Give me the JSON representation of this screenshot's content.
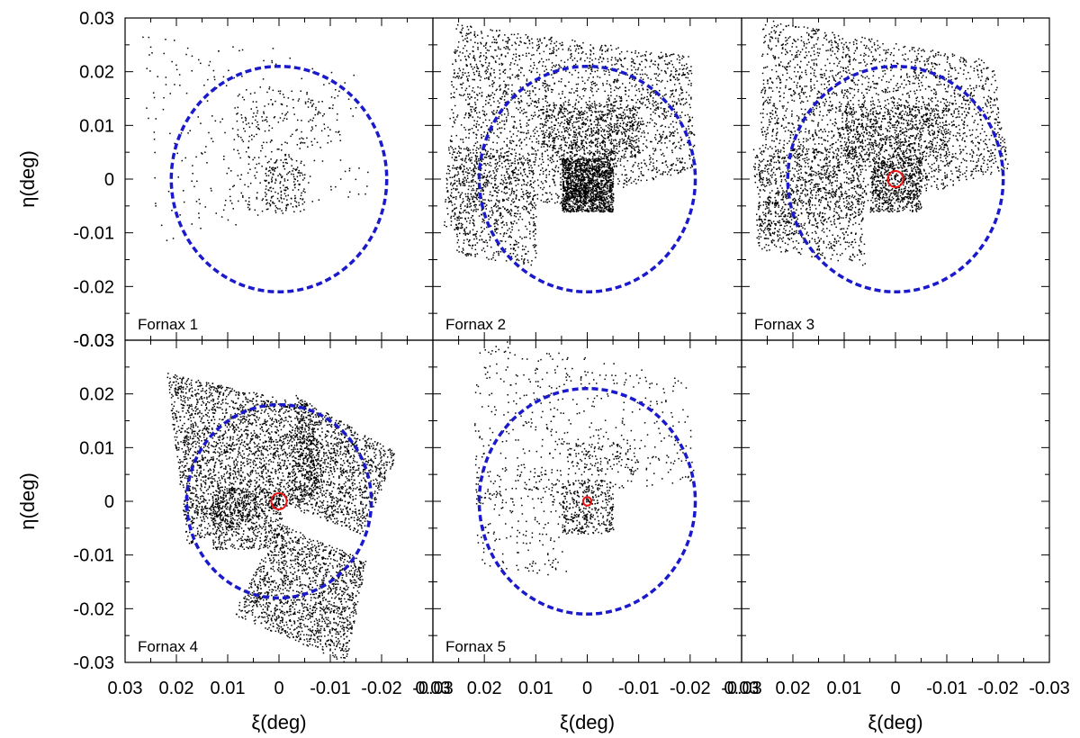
{
  "chart_data": {
    "type": "scatter",
    "xlabel": "ξ(deg)",
    "ylabel": "η(deg)",
    "xlim": [
      0.03,
      -0.03
    ],
    "ylim": [
      -0.03,
      0.03
    ],
    "x_ticks": [
      0.03,
      0.02,
      0.01,
      0,
      -0.01,
      -0.02,
      -0.03
    ],
    "x_tick_labels": [
      "0.03",
      "0.02",
      "0.01",
      "0",
      "-0.01",
      "-0.02",
      "-0.03"
    ],
    "y_ticks": [
      -0.03,
      -0.02,
      -0.01,
      0,
      0.01,
      0.02,
      0.03
    ],
    "y_tick_labels": [
      "-0.03",
      "-0.02",
      "-0.01",
      "0",
      "0.01",
      "0.02",
      "0.03"
    ],
    "grid": false,
    "panels": [
      {
        "label": "Fornax 1",
        "tidal_radius": 0.021,
        "center_circle_radius": null,
        "density": 0.35,
        "fields": [
          {
            "corners": [
              [
                0.027,
                0.027
              ],
              [
                -0.014,
                0.023
              ],
              [
                -0.018,
                -0.003
              ],
              [
                0.024,
                -0.012
              ]
            ],
            "density": 0.25
          },
          {
            "corners": [
              [
                0.009,
                0.017
              ],
              [
                -0.012,
                0.017
              ],
              [
                -0.012,
                0.006
              ],
              [
                0.009,
                0.006
              ]
            ],
            "density": 1.0
          },
          {
            "corners": [
              [
                0.011,
                0.006
              ],
              [
                -0.002,
                0.006
              ],
              [
                -0.002,
                -0.006
              ],
              [
                0.011,
                -0.006
              ]
            ],
            "density": 0.9
          },
          {
            "corners": [
              [
                0.003,
                0.004
              ],
              [
                -0.005,
                0.004
              ],
              [
                -0.005,
                -0.006
              ],
              [
                0.003,
                -0.006
              ]
            ],
            "density": 3.0
          }
        ]
      },
      {
        "label": "Fornax 2",
        "tidal_radius": 0.021,
        "center_circle_radius": null,
        "density": 1.0,
        "fields": [
          {
            "corners": [
              [
                0.026,
                0.029
              ],
              [
                -0.02,
                0.023
              ],
              [
                -0.021,
                0.002
              ],
              [
                0.028,
                -0.01
              ]
            ],
            "density": 1.0
          },
          {
            "corners": [
              [
                0.026,
                0.006
              ],
              [
                0.01,
                0.005
              ],
              [
                0.01,
                -0.016
              ],
              [
                0.026,
                -0.014
              ]
            ],
            "density": 1.0
          },
          {
            "corners": [
              [
                0.009,
                0.014
              ],
              [
                -0.01,
                0.014
              ],
              [
                -0.01,
                0.004
              ],
              [
                0.009,
                0.004
              ]
            ],
            "density": 1.6
          },
          {
            "corners": [
              [
                0.005,
                0.004
              ],
              [
                -0.005,
                0.004
              ],
              [
                -0.005,
                -0.006
              ],
              [
                0.005,
                -0.006
              ]
            ],
            "density": 8.0
          }
        ]
      },
      {
        "label": "Fornax 3",
        "tidal_radius": 0.021,
        "center_circle_radius": 0.0015,
        "density": 1.0,
        "fields": [
          {
            "corners": [
              [
                0.026,
                0.03
              ],
              [
                -0.019,
                0.022
              ],
              [
                -0.022,
                0.002
              ],
              [
                0.027,
                -0.012
              ]
            ],
            "density": 1.0
          },
          {
            "corners": [
              [
                0.028,
                0.006
              ],
              [
                0.007,
                0.006
              ],
              [
                0.006,
                -0.016
              ],
              [
                0.027,
                -0.013
              ]
            ],
            "density": 1.0
          },
          {
            "corners": [
              [
                0.01,
                0.014
              ],
              [
                -0.01,
                0.014
              ],
              [
                -0.01,
                0.004
              ],
              [
                0.01,
                0.004
              ]
            ],
            "density": 1.6
          },
          {
            "corners": [
              [
                0.005,
                0.004
              ],
              [
                -0.005,
                0.004
              ],
              [
                -0.005,
                -0.006
              ],
              [
                0.005,
                -0.006
              ]
            ],
            "density": 3.0
          }
        ]
      },
      {
        "label": "Fornax 4",
        "tidal_radius": 0.018,
        "center_circle_radius": 0.0015,
        "density": 2.0,
        "fields": [
          {
            "corners": [
              [
                0.022,
                0.024
              ],
              [
                -0.006,
                0.018
              ],
              [
                -0.009,
                0.002
              ],
              [
                0.018,
                -0.008
              ]
            ],
            "density": 1.0
          },
          {
            "corners": [
              [
                0.013,
                0.003
              ],
              [
                0.0,
                0.002
              ],
              [
                -0.001,
                -0.009
              ],
              [
                0.013,
                -0.009
              ]
            ],
            "density": 1.0
          },
          {
            "corners": [
              [
                -0.003,
                0.02
              ],
              [
                -0.023,
                0.009
              ],
              [
                -0.016,
                -0.006
              ],
              [
                -0.002,
                -0.001
              ]
            ],
            "density": 1.0
          },
          {
            "corners": [
              [
                0.0,
                -0.004
              ],
              [
                -0.017,
                -0.011
              ],
              [
                -0.013,
                -0.03
              ],
              [
                0.009,
                -0.021
              ]
            ],
            "density": 1.0
          }
        ]
      },
      {
        "label": "Fornax 5",
        "tidal_radius": 0.021,
        "center_circle_radius": 0.0008,
        "density": 0.5,
        "fields": [
          {
            "corners": [
              [
                0.022,
                0.031
              ],
              [
                -0.02,
                0.023
              ],
              [
                -0.021,
                0.004
              ],
              [
                0.022,
                -0.001
              ]
            ],
            "density": 0.5
          },
          {
            "corners": [
              [
                0.022,
                0.006
              ],
              [
                0.005,
                0.006
              ],
              [
                0.004,
                -0.014
              ],
              [
                0.022,
                -0.012
              ]
            ],
            "density": 0.6
          },
          {
            "corners": [
              [
                0.004,
                0.011
              ],
              [
                -0.01,
                0.011
              ],
              [
                -0.01,
                0.005
              ],
              [
                0.004,
                0.005
              ]
            ],
            "density": 1.4
          },
          {
            "corners": [
              [
                0.005,
                0.004
              ],
              [
                -0.005,
                0.004
              ],
              [
                -0.005,
                -0.006
              ],
              [
                0.005,
                -0.006
              ]
            ],
            "density": 4.0
          }
        ]
      },
      {
        "label": "",
        "tidal_radius": null,
        "center_circle_radius": null,
        "density": 0,
        "fields": []
      }
    ],
    "colors": {
      "points": "#000000",
      "tidal_circle": "#1a1acc",
      "center_circle": "#ee1111",
      "frame": "#000000"
    }
  }
}
